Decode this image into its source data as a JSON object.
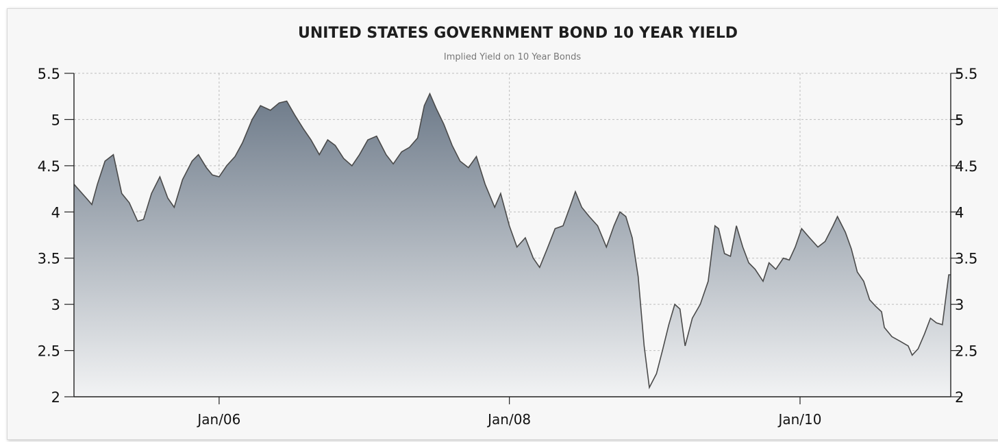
{
  "chart_data": {
    "type": "area",
    "title": "UNITED STATES GOVERNMENT BOND 10 YEAR YIELD",
    "subtitle": "Implied Yield on 10 Year Bonds",
    "ylim": [
      2,
      5.5
    ],
    "y_ticks": [
      "2",
      "2.5",
      "3",
      "3.5",
      "4",
      "4.5",
      "5",
      "5.5"
    ],
    "x_ticks": [
      "Jan/06",
      "Jan/08",
      "Jan/10"
    ],
    "x_range": [
      "2005-01-01",
      "2011-01-15"
    ],
    "grid": true,
    "legend": "none",
    "colors": {
      "line": "#4a4a4a",
      "fill_top": "#6d7a89",
      "fill_bottom": "#f2f3f4"
    },
    "series": [
      {
        "x": [
          "2005-01-01",
          "2005-02-01",
          "2005-02-15",
          "2005-03-01",
          "2005-03-20",
          "2005-04-10",
          "2005-05-01",
          "2005-05-20",
          "2005-06-10",
          "2005-06-25",
          "2005-07-15",
          "2005-08-05",
          "2005-08-25",
          "2005-09-10",
          "2005-10-01",
          "2005-10-25",
          "2005-11-10",
          "2005-11-30",
          "2005-12-15",
          "2006-01-01",
          "2006-01-20",
          "2006-02-10",
          "2006-03-01",
          "2006-03-25",
          "2006-04-15",
          "2006-05-10",
          "2006-06-01",
          "2006-06-20",
          "2006-07-10",
          "2006-08-01",
          "2006-08-20",
          "2006-09-10",
          "2006-10-01",
          "2006-10-20",
          "2006-11-10",
          "2006-12-01",
          "2006-12-20",
          "2007-01-10",
          "2007-02-01",
          "2007-02-25",
          "2007-03-15",
          "2007-04-05",
          "2007-04-25",
          "2007-05-15",
          "2007-06-01",
          "2007-06-15",
          "2007-07-01",
          "2007-07-20",
          "2007-08-10",
          "2007-08-30",
          "2007-09-20",
          "2007-10-10",
          "2007-11-01",
          "2007-11-25",
          "2007-12-10",
          "2008-01-01",
          "2008-01-20",
          "2008-02-10",
          "2008-03-01",
          "2008-03-17",
          "2008-04-05",
          "2008-04-25",
          "2008-05-15",
          "2008-06-01",
          "2008-06-15",
          "2008-07-01",
          "2008-07-20",
          "2008-08-10",
          "2008-09-01",
          "2008-09-20",
          "2008-10-05",
          "2008-10-20",
          "2008-11-05",
          "2008-11-20",
          "2008-12-05",
          "2008-12-18",
          "2009-01-05",
          "2009-01-20",
          "2009-02-05",
          "2009-02-20",
          "2009-03-05",
          "2009-03-18",
          "2009-04-05",
          "2009-04-25",
          "2009-05-15",
          "2009-06-01",
          "2009-06-10",
          "2009-06-25",
          "2009-07-10",
          "2009-07-25",
          "2009-08-10",
          "2009-08-25",
          "2009-09-10",
          "2009-09-30",
          "2009-10-15",
          "2009-11-01",
          "2009-11-20",
          "2009-12-05",
          "2009-12-20",
          "2010-01-05",
          "2010-01-25",
          "2010-02-15",
          "2010-03-05",
          "2010-03-25",
          "2010-04-05",
          "2010-04-25",
          "2010-05-10",
          "2010-05-25",
          "2010-06-10",
          "2010-06-25",
          "2010-07-10",
          "2010-07-25",
          "2010-08-01",
          "2010-08-20",
          "2010-09-10",
          "2010-09-30",
          "2010-10-10",
          "2010-10-25",
          "2010-11-10",
          "2010-11-25",
          "2010-12-10",
          "2010-12-25",
          "2011-01-10",
          "2011-01-15"
        ],
        "values": [
          4.3,
          4.15,
          4.08,
          4.3,
          4.55,
          4.62,
          4.2,
          4.1,
          3.9,
          3.92,
          4.2,
          4.38,
          4.15,
          4.05,
          4.35,
          4.55,
          4.62,
          4.48,
          4.4,
          4.38,
          4.5,
          4.6,
          4.75,
          5.0,
          5.15,
          5.1,
          5.18,
          5.2,
          5.05,
          4.9,
          4.78,
          4.62,
          4.78,
          4.72,
          4.58,
          4.5,
          4.62,
          4.78,
          4.82,
          4.62,
          4.52,
          4.65,
          4.7,
          4.8,
          5.15,
          5.28,
          5.12,
          4.95,
          4.72,
          4.55,
          4.48,
          4.6,
          4.3,
          4.05,
          4.2,
          3.85,
          3.62,
          3.72,
          3.5,
          3.4,
          3.6,
          3.82,
          3.85,
          4.05,
          4.22,
          4.05,
          3.95,
          3.85,
          3.62,
          3.85,
          4.0,
          3.95,
          3.72,
          3.3,
          2.55,
          2.1,
          2.25,
          2.5,
          2.78,
          3.0,
          2.95,
          2.55,
          2.85,
          3.0,
          3.25,
          3.85,
          3.82,
          3.55,
          3.52,
          3.85,
          3.62,
          3.45,
          3.38,
          3.25,
          3.45,
          3.38,
          3.5,
          3.48,
          3.62,
          3.82,
          3.72,
          3.62,
          3.68,
          3.85,
          3.95,
          3.78,
          3.6,
          3.35,
          3.25,
          3.05,
          2.98,
          2.92,
          2.75,
          2.65,
          2.6,
          2.55,
          2.45,
          2.52,
          2.68,
          2.85,
          2.8,
          2.78,
          3.32,
          3.32
        ]
      }
    ]
  }
}
